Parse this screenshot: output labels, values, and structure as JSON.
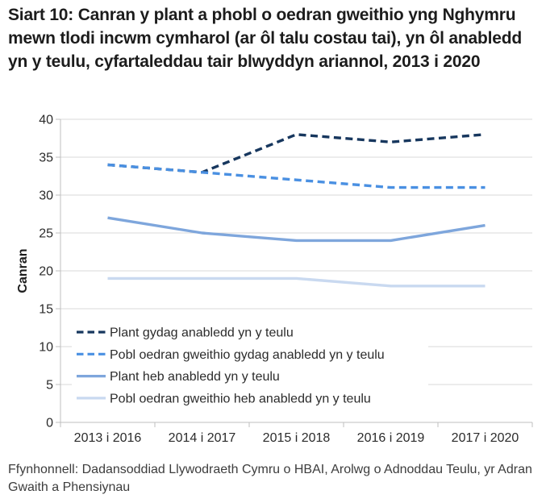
{
  "title": "Siart 10: Canran y plant a phobl o oedran gweithio yng Nghymru mewn tlodi incwm cymharol (ar ôl talu costau tai), yn ôl anabledd yn y teulu, cyfartaleddau tair blwyddyn ariannol, 2013 i 2020",
  "source": "Ffynhonnell: Dadansoddiad Llywodraeth Cymru o HBAI, Arolwg o Adnoddau Teulu, yr Adran Gwaith a Phensiynau",
  "chart_data": {
    "type": "line",
    "title": "Siart 10: Canran y plant a phobl o oedran gweithio yng Nghymru mewn tlodi incwm cymharol (ar ôl talu costau tai), yn ôl anabledd yn y teulu, cyfartaleddau tair blwyddyn ariannol, 2013 i 2020",
    "xlabel": "",
    "ylabel": "Canran",
    "ylim": [
      0,
      40
    ],
    "yticks": [
      0,
      5,
      10,
      15,
      20,
      25,
      30,
      35,
      40
    ],
    "grid": true,
    "legend_position": "inside-bottom-left",
    "categories": [
      "2013 i 2016",
      "2014 i 2017",
      "2015 i 2018",
      "2016 i 2019",
      "2017 i 2020"
    ],
    "series": [
      {
        "name": "Plant gydag anabledd yn y teulu",
        "values": [
          34,
          33,
          38,
          37,
          38
        ],
        "color": "#17375E",
        "style": "dashed"
      },
      {
        "name": "Pobl oedran gweithio gydag anabledd yn y teulu",
        "values": [
          34,
          33,
          32,
          31,
          31
        ],
        "color": "#4A90E2",
        "style": "dashed"
      },
      {
        "name": "Plant heb anabledd yn y teulu",
        "values": [
          27,
          25,
          24,
          24,
          26
        ],
        "color": "#7EA6DC",
        "style": "solid"
      },
      {
        "name": "Pobl oedran gweithio heb anabledd yn y teulu",
        "values": [
          19,
          19,
          19,
          18,
          18
        ],
        "color": "#C9D9F0",
        "style": "solid"
      }
    ],
    "grid_color": "#D9D9D9",
    "axis_color": "#BFBFBF"
  }
}
